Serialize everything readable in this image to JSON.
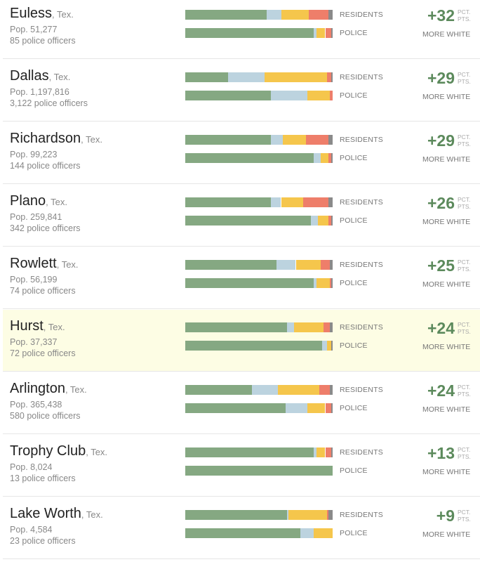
{
  "labels": {
    "residents": "RESIDENTS",
    "police": "POLICE",
    "pct_pts": "PCT. PTS.",
    "more_white": "MORE WHITE"
  },
  "colors": {
    "white": "#85a882",
    "black": "#bcd3df",
    "hispanic": "#f5c64c",
    "asian": "#ee7e6a",
    "other": "#8a8a8a"
  },
  "chart_data": {
    "type": "bar",
    "categories": [
      "Euless",
      "Dallas",
      "Richardson",
      "Plano",
      "Rowlett",
      "Hurst",
      "Arlington",
      "Trophy Club",
      "Lake Worth"
    ],
    "series_keys": [
      "white",
      "black",
      "hispanic",
      "asian",
      "other"
    ],
    "cities": [
      {
        "name": "Euless",
        "state": ", Tex.",
        "pop": "Pop. 51,277",
        "officers": "85 police officers",
        "diff": "+32",
        "residents": [
          55,
          10,
          19,
          13,
          3
        ],
        "police": [
          87,
          2,
          6,
          4,
          1
        ]
      },
      {
        "name": "Dallas",
        "state": ", Tex.",
        "pop": "Pop. 1,197,816",
        "officers": "3,122 police officers",
        "diff": "+29",
        "residents": [
          29,
          25,
          42,
          3,
          1
        ],
        "police": [
          58,
          25,
          15,
          2,
          0
        ]
      },
      {
        "name": "Richardson",
        "state": ", Tex.",
        "pop": "Pop. 99,223",
        "officers": "144 police officers",
        "diff": "+29",
        "residents": [
          58,
          8,
          16,
          15,
          3
        ],
        "police": [
          87,
          5,
          5,
          2,
          1
        ]
      },
      {
        "name": "Plano",
        "state": ", Tex.",
        "pop": "Pop. 259,841",
        "officers": "342 police officers",
        "diff": "+26",
        "residents": [
          58,
          7,
          15,
          17,
          3
        ],
        "police": [
          85,
          5,
          7,
          2,
          1
        ]
      },
      {
        "name": "Rowlett",
        "state": ", Tex.",
        "pop": "Pop. 56,199",
        "officers": "74 police officers",
        "diff": "+25",
        "residents": [
          62,
          13,
          17,
          6,
          2
        ],
        "police": [
          87,
          2,
          9,
          1,
          1
        ]
      },
      {
        "name": "Hurst",
        "state": ", Tex.",
        "pop": "Pop. 37,337",
        "officers": "72 police officers",
        "diff": "+24",
        "residents": [
          69,
          5,
          20,
          4,
          2
        ],
        "police": [
          93,
          3,
          3,
          0,
          1
        ]
      },
      {
        "name": "Arlington",
        "state": ", Tex.",
        "pop": "Pop. 365,438",
        "officers": "580 police officers",
        "diff": "+24",
        "residents": [
          45,
          18,
          28,
          7,
          2
        ],
        "police": [
          68,
          15,
          12,
          4,
          1
        ]
      },
      {
        "name": "Trophy Club",
        "state": ", Tex.",
        "pop": "Pop. 8,024",
        "officers": "13 police officers",
        "diff": "+13",
        "residents": [
          87,
          2,
          6,
          4,
          1
        ],
        "police": [
          100,
          0,
          0,
          0,
          0
        ]
      },
      {
        "name": "Lake Worth",
        "state": ", Tex.",
        "pop": "Pop. 4,584",
        "officers": "23 police officers",
        "diff": "+9",
        "residents": [
          69,
          1,
          26,
          1,
          3
        ],
        "police": [
          78,
          9,
          13,
          0,
          0
        ]
      }
    ],
    "highlighted": "Hurst"
  }
}
